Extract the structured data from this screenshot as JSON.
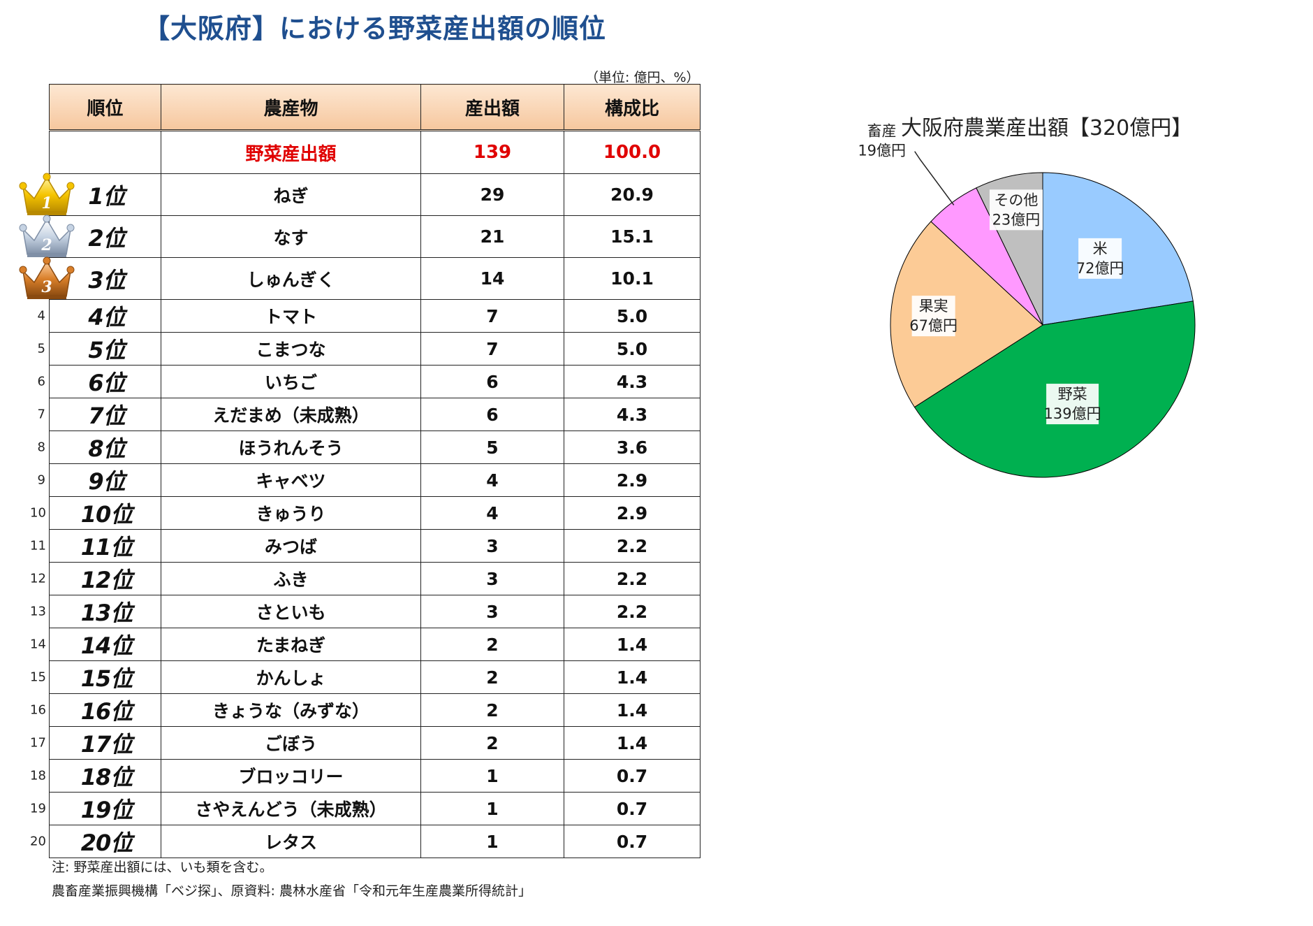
{
  "title": "【大阪府】における野菜産出額の順位",
  "unit_note": "（単位: 億円、%）",
  "table": {
    "headers": {
      "rank": "順位",
      "crop": "農産物",
      "value": "産出額",
      "share": "構成比"
    },
    "total": {
      "crop": "野菜産出額",
      "value": "139",
      "share": "100.0"
    },
    "rows": [
      {
        "no": "",
        "rank": "1位",
        "crop": "ねぎ",
        "value": "29",
        "share": "20.9",
        "medal": "gold"
      },
      {
        "no": "",
        "rank": "2位",
        "crop": "なす",
        "value": "21",
        "share": "15.1",
        "medal": "silver"
      },
      {
        "no": "",
        "rank": "3位",
        "crop": "しゅんぎく",
        "value": "14",
        "share": "10.1",
        "medal": "bronze"
      },
      {
        "no": "4",
        "rank": "4位",
        "crop": "トマト",
        "value": "7",
        "share": "5.0"
      },
      {
        "no": "5",
        "rank": "5位",
        "crop": "こまつな",
        "value": "7",
        "share": "5.0"
      },
      {
        "no": "6",
        "rank": "6位",
        "crop": "いちご",
        "value": "6",
        "share": "4.3"
      },
      {
        "no": "7",
        "rank": "7位",
        "crop": "えだまめ（未成熟）",
        "value": "6",
        "share": "4.3"
      },
      {
        "no": "8",
        "rank": "8位",
        "crop": "ほうれんそう",
        "value": "5",
        "share": "3.6"
      },
      {
        "no": "9",
        "rank": "9位",
        "crop": "キャベツ",
        "value": "4",
        "share": "2.9"
      },
      {
        "no": "10",
        "rank": "10位",
        "crop": "きゅうり",
        "value": "4",
        "share": "2.9"
      },
      {
        "no": "11",
        "rank": "11位",
        "crop": "みつば",
        "value": "3",
        "share": "2.2"
      },
      {
        "no": "12",
        "rank": "12位",
        "crop": "ふき",
        "value": "3",
        "share": "2.2"
      },
      {
        "no": "13",
        "rank": "13位",
        "crop": "さといも",
        "value": "3",
        "share": "2.2"
      },
      {
        "no": "14",
        "rank": "14位",
        "crop": "たまねぎ",
        "value": "2",
        "share": "1.4"
      },
      {
        "no": "15",
        "rank": "15位",
        "crop": "かんしょ",
        "value": "2",
        "share": "1.4"
      },
      {
        "no": "16",
        "rank": "16位",
        "crop": "きょうな（みずな）",
        "value": "2",
        "share": "1.4"
      },
      {
        "no": "17",
        "rank": "17位",
        "crop": "ごぼう",
        "value": "2",
        "share": "1.4"
      },
      {
        "no": "18",
        "rank": "18位",
        "crop": "ブロッコリー",
        "value": "1",
        "share": "0.7"
      },
      {
        "no": "19",
        "rank": "19位",
        "crop": "さやえんどう（未成熟）",
        "value": "1",
        "share": "0.7"
      },
      {
        "no": "20",
        "rank": "20位",
        "crop": "レタス",
        "value": "1",
        "share": "0.7"
      }
    ]
  },
  "notes": [
    "注: 野菜産出額には、いも類を含む。",
    "農畜産業振興機構「ベジ探」、原資料: 農林水産省「令和元年生産農業所得統計」"
  ],
  "medal_numbers": {
    "gold": "1",
    "silver": "2",
    "bronze": "3"
  },
  "colors": {
    "title": "#1f4f8f",
    "total_text": "#e00000",
    "header_bg": "#f6c79e"
  },
  "chart_data": {
    "type": "pie",
    "title": "大阪府農業産出額【320億円】",
    "total": 320,
    "slices": [
      {
        "name": "米",
        "label": "72億円",
        "value": 72,
        "color": "#99cbff"
      },
      {
        "name": "野菜",
        "label": "139億円",
        "value": 139,
        "color": "#00b050"
      },
      {
        "name": "果実",
        "label": "67億円",
        "value": 67,
        "color": "#fccb96"
      },
      {
        "name": "畜産",
        "label": "19億円",
        "value": 19,
        "color": "#ff99ff"
      },
      {
        "name": "その他",
        "label": "23億円",
        "value": 23,
        "color": "#bfbfbf"
      }
    ]
  }
}
